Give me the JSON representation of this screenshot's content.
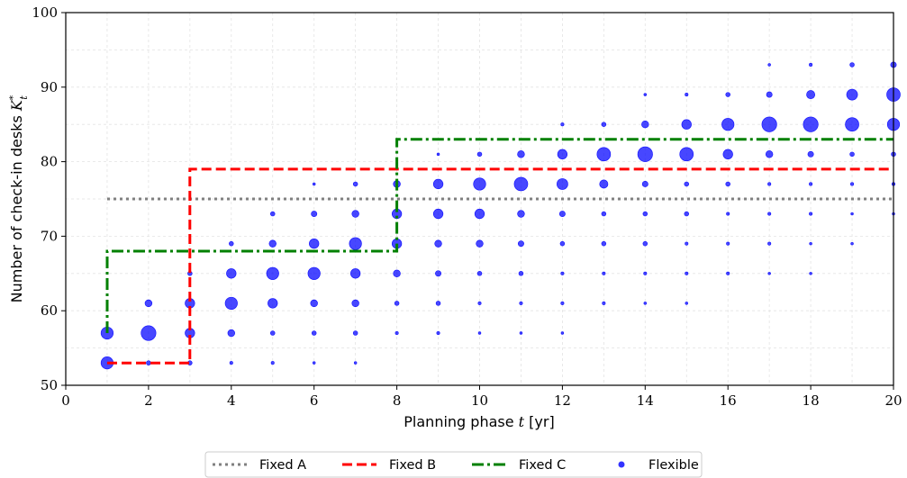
{
  "chart_data": {
    "type": "scatter",
    "xlabel": "Planning phase t [yr]",
    "ylabel": "Number of check-in desks K*t",
    "xlabel_parts": {
      "pre": "Planning phase ",
      "var": "t",
      "post": " [yr]"
    },
    "ylabel_parts": {
      "pre": "Number of check-in desks ",
      "var": "K",
      "sup": "*",
      "sub": "t"
    },
    "xlim": [
      0,
      20
    ],
    "ylim": [
      50,
      100
    ],
    "xticks": [
      0,
      2,
      4,
      6,
      8,
      10,
      12,
      14,
      16,
      18,
      20
    ],
    "yticks": [
      50,
      60,
      70,
      80,
      90,
      100
    ],
    "grid": true,
    "legend_position": "bottom-center-outside",
    "colors": {
      "fixed_a": "#808080",
      "fixed_b": "#ff0000",
      "fixed_c": "#008000",
      "flexible": "#0000ff"
    },
    "legend": [
      {
        "key": "fixed_a",
        "label": "Fixed A",
        "style": "dotted"
      },
      {
        "key": "fixed_b",
        "label": "Fixed B",
        "style": "dashed"
      },
      {
        "key": "fixed_c",
        "label": "Fixed C",
        "style": "dashdot"
      },
      {
        "key": "flexible",
        "label": "Flexible",
        "style": "marker"
      }
    ],
    "series": [
      {
        "name": "Fixed A",
        "key": "fixed_a",
        "style": "dotted",
        "steps": [
          [
            1,
            75
          ],
          [
            20,
            75
          ]
        ]
      },
      {
        "name": "Fixed B",
        "key": "fixed_b",
        "style": "dashed",
        "steps": [
          [
            1,
            53
          ],
          [
            3,
            53
          ],
          [
            3,
            79
          ],
          [
            20,
            79
          ]
        ]
      },
      {
        "name": "Fixed C",
        "key": "fixed_c",
        "style": "dashdot",
        "steps": [
          [
            1,
            57
          ],
          [
            1,
            68
          ],
          [
            8,
            68
          ],
          [
            8,
            83
          ],
          [
            20,
            83
          ]
        ]
      },
      {
        "name": "Flexible",
        "key": "flexible",
        "style": "marker",
        "points": [
          [
            1,
            53,
            4
          ],
          [
            1,
            57,
            4
          ],
          [
            2,
            53,
            1
          ],
          [
            2,
            57,
            5
          ],
          [
            2,
            61,
            2
          ],
          [
            3,
            53,
            1
          ],
          [
            3,
            57,
            3
          ],
          [
            3,
            61,
            3
          ],
          [
            3,
            65,
            1
          ],
          [
            4,
            53,
            0.5
          ],
          [
            4,
            57,
            2
          ],
          [
            4,
            61,
            4
          ],
          [
            4,
            65,
            3
          ],
          [
            4,
            69,
            1
          ],
          [
            5,
            53,
            0.5
          ],
          [
            5,
            57,
            1
          ],
          [
            5,
            61,
            3
          ],
          [
            5,
            65,
            4
          ],
          [
            5,
            69,
            2
          ],
          [
            5,
            73,
            1
          ],
          [
            6,
            53,
            0.3
          ],
          [
            6,
            57,
            1
          ],
          [
            6,
            61,
            2
          ],
          [
            6,
            65,
            4
          ],
          [
            6,
            69,
            3
          ],
          [
            6,
            73,
            1.5
          ],
          [
            6,
            77,
            0.3
          ],
          [
            7,
            53,
            0.3
          ],
          [
            7,
            57,
            1
          ],
          [
            7,
            61,
            2
          ],
          [
            7,
            65,
            3
          ],
          [
            7,
            69,
            4
          ],
          [
            7,
            73,
            2
          ],
          [
            7,
            77,
            1
          ],
          [
            8,
            57,
            0.5
          ],
          [
            8,
            61,
            1
          ],
          [
            8,
            65,
            2
          ],
          [
            8,
            69,
            3
          ],
          [
            8,
            73,
            3
          ],
          [
            8,
            77,
            2
          ],
          [
            9,
            57,
            0.5
          ],
          [
            9,
            61,
            1
          ],
          [
            9,
            65,
            1.5
          ],
          [
            9,
            69,
            2
          ],
          [
            9,
            73,
            3
          ],
          [
            9,
            77,
            3
          ],
          [
            9,
            81,
            0.3
          ],
          [
            10,
            57,
            0.3
          ],
          [
            10,
            61,
            0.5
          ],
          [
            10,
            65,
            1
          ],
          [
            10,
            69,
            2
          ],
          [
            10,
            73,
            3
          ],
          [
            10,
            77,
            4
          ],
          [
            10,
            81,
            1
          ],
          [
            11,
            57,
            0.3
          ],
          [
            11,
            61,
            0.5
          ],
          [
            11,
            65,
            1
          ],
          [
            11,
            69,
            1.5
          ],
          [
            11,
            73,
            2
          ],
          [
            11,
            77,
            4.5
          ],
          [
            11,
            81,
            2
          ],
          [
            12,
            57,
            0.3
          ],
          [
            12,
            61,
            0.5
          ],
          [
            12,
            65,
            0.5
          ],
          [
            12,
            69,
            1
          ],
          [
            12,
            73,
            1.5
          ],
          [
            12,
            77,
            3.5
          ],
          [
            12,
            81,
            3
          ],
          [
            12,
            85,
            0.5
          ],
          [
            13,
            61,
            0.5
          ],
          [
            13,
            65,
            0.5
          ],
          [
            13,
            69,
            1
          ],
          [
            13,
            73,
            1
          ],
          [
            13,
            77,
            2.5
          ],
          [
            13,
            81,
            4.5
          ],
          [
            13,
            85,
            1
          ],
          [
            14,
            61,
            0.3
          ],
          [
            14,
            65,
            0.5
          ],
          [
            14,
            69,
            1
          ],
          [
            14,
            73,
            1
          ],
          [
            14,
            77,
            1.5
          ],
          [
            14,
            81,
            5
          ],
          [
            14,
            85,
            2
          ],
          [
            14,
            89,
            0.3
          ],
          [
            15,
            61,
            0.3
          ],
          [
            15,
            65,
            0.5
          ],
          [
            15,
            69,
            0.5
          ],
          [
            15,
            73,
            1
          ],
          [
            15,
            77,
            1
          ],
          [
            15,
            81,
            4.5
          ],
          [
            15,
            85,
            3
          ],
          [
            15,
            89,
            0.5
          ],
          [
            16,
            65,
            0.5
          ],
          [
            16,
            69,
            0.5
          ],
          [
            16,
            73,
            0.5
          ],
          [
            16,
            77,
            1
          ],
          [
            16,
            81,
            3
          ],
          [
            16,
            85,
            4
          ],
          [
            16,
            89,
            1
          ],
          [
            17,
            65,
            0.3
          ],
          [
            17,
            69,
            0.5
          ],
          [
            17,
            73,
            0.5
          ],
          [
            17,
            77,
            0.5
          ],
          [
            17,
            81,
            2
          ],
          [
            17,
            85,
            5
          ],
          [
            17,
            89,
            1.5
          ],
          [
            17,
            93,
            0.3
          ],
          [
            18,
            65,
            0.3
          ],
          [
            18,
            69,
            0.3
          ],
          [
            18,
            73,
            0.5
          ],
          [
            18,
            77,
            0.5
          ],
          [
            18,
            81,
            1.5
          ],
          [
            18,
            85,
            5
          ],
          [
            18,
            89,
            2.5
          ],
          [
            18,
            93,
            0.5
          ],
          [
            19,
            69,
            0.3
          ],
          [
            19,
            73,
            0.3
          ],
          [
            19,
            77,
            0.5
          ],
          [
            19,
            81,
            1
          ],
          [
            19,
            85,
            4.5
          ],
          [
            19,
            89,
            3.5
          ],
          [
            19,
            93,
            1
          ],
          [
            20,
            73,
            0.3
          ],
          [
            20,
            77,
            0.5
          ],
          [
            20,
            81,
            1
          ],
          [
            20,
            85,
            4
          ],
          [
            20,
            89,
            4.5
          ],
          [
            20,
            93,
            1.5
          ]
        ]
      }
    ]
  }
}
